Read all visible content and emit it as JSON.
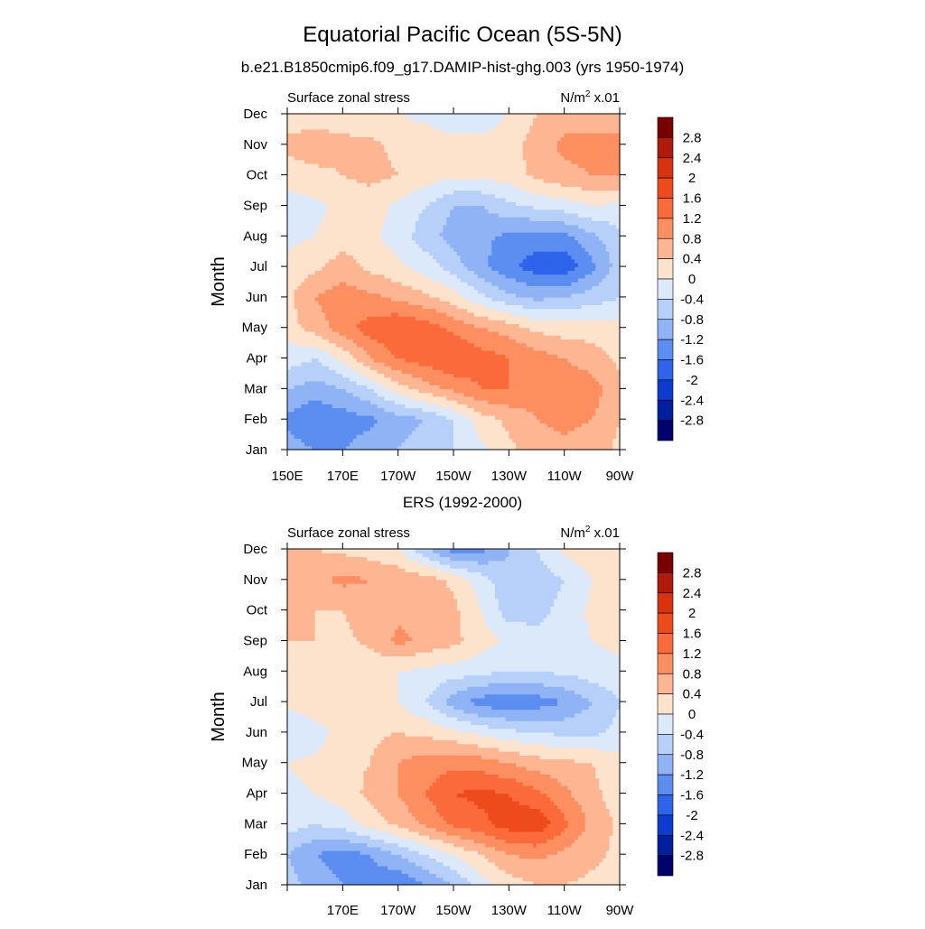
{
  "title": "Equatorial Pacific Ocean (5S-5N)",
  "colorbar_levels": [
    "2.8",
    "2.4",
    "2",
    "1.6",
    "1.2",
    "0.8",
    "0.4",
    "0",
    "-0.4",
    "-0.8",
    "-1.2",
    "-1.6",
    "-2",
    "-2.4",
    "-2.8"
  ],
  "colorbar_colors": [
    "#7a0000",
    "#b01a0a",
    "#d8320f",
    "#ef4a1c",
    "#fb6a3a",
    "#fd8e60",
    "#fdb592",
    "#fde3cc",
    "#dbe9fb",
    "#b7d0f9",
    "#8fb3f5",
    "#5c8df0",
    "#2e63eb",
    "#0c3ccd",
    "#001f9e",
    "#00006e"
  ],
  "panels": [
    {
      "subtitle": "b.e21.B1850cmip6.f09_g17.DAMIP-hist-ghg.003 (yrs 1950-1974)",
      "left_label": "Surface zonal stress",
      "units": "N/m",
      "units_sup": "2",
      "units_suffix": " x.01",
      "ylabel": "Month",
      "month_labels": [
        "Jan",
        "Feb",
        "Mar",
        "Apr",
        "May",
        "Jun",
        "Jul",
        "Aug",
        "Sep",
        "Oct",
        "Nov",
        "Dec"
      ],
      "lon_labels": [
        "150E",
        "170E",
        "170W",
        "150W",
        "130W",
        "110W",
        "90W"
      ]
    },
    {
      "subtitle": "ERS (1992-2000)",
      "left_label": "Surface zonal stress",
      "units": "N/m",
      "units_sup": "2",
      "units_suffix": " x.01",
      "ylabel": "Month",
      "month_labels": [
        "Jan",
        "Feb",
        "Mar",
        "Apr",
        "May",
        "Jun",
        "Jul",
        "Aug",
        "Sep",
        "Oct",
        "Nov",
        "Dec"
      ],
      "lon_labels": [
        "",
        "170E",
        "170W",
        "150W",
        "130W",
        "110W",
        "90W"
      ]
    }
  ],
  "chart_data": [
    {
      "type": "heatmap",
      "title": "Equatorial Pacific Ocean (5S-5N)",
      "subtitle": "b.e21.B1850cmip6.f09_g17.DAMIP-hist-ghg.003 (yrs 1950-1974)",
      "variable": "Surface zonal stress",
      "units": "N/m2 x.01",
      "ylabel": "Month",
      "xlim": [
        "150E",
        "90W"
      ],
      "ylim": [
        "Jan",
        "Dec"
      ],
      "levels": [
        -2.8,
        -2.4,
        -2,
        -1.6,
        -1.2,
        -0.8,
        -0.4,
        0,
        0.4,
        0.8,
        1.2,
        1.6,
        2,
        2.4,
        2.8
      ],
      "x": [
        "150E",
        "160E",
        "170E",
        "180",
        "170W",
        "160W",
        "150W",
        "140W",
        "130W",
        "120W",
        "110W",
        "100W",
        "90W"
      ],
      "y": [
        "Jan",
        "Feb",
        "Mar",
        "Apr",
        "May",
        "Jun",
        "Jul",
        "Aug",
        "Sep",
        "Oct",
        "Nov",
        "Dec"
      ],
      "z": [
        [
          -1.0,
          -1.2,
          -1.2,
          -1.0,
          -0.8,
          -0.6,
          -0.4,
          -0.1,
          0.3,
          0.6,
          0.7,
          0.6,
          0.3
        ],
        [
          -1.3,
          -1.6,
          -1.4,
          -1.3,
          -1.0,
          -0.8,
          -0.4,
          0.2,
          0.5,
          0.8,
          0.9,
          0.8,
          0.4
        ],
        [
          -0.8,
          -1.0,
          -0.8,
          -0.4,
          0.2,
          0.6,
          0.9,
          1.2,
          1.2,
          1.0,
          1.1,
          1.0,
          0.5
        ],
        [
          -0.2,
          -0.4,
          0.1,
          0.8,
          1.2,
          1.4,
          1.6,
          1.4,
          1.2,
          1.0,
          0.8,
          0.6,
          0.3
        ],
        [
          0.2,
          0.6,
          1.0,
          1.4,
          1.6,
          1.4,
          1.1,
          0.8,
          0.6,
          0.3,
          0.2,
          0.2,
          0.1
        ],
        [
          0.3,
          0.8,
          1.0,
          0.9,
          0.7,
          0.5,
          0.2,
          -0.3,
          -0.7,
          -0.9,
          -0.8,
          -0.6,
          -0.4
        ],
        [
          0.1,
          0.3,
          0.6,
          0.3,
          0.1,
          -0.2,
          -0.6,
          -1.1,
          -1.5,
          -1.8,
          -1.9,
          -1.3,
          -0.6
        ],
        [
          -0.1,
          0.0,
          0.2,
          0.1,
          -0.2,
          -0.6,
          -1.0,
          -1.1,
          -1.3,
          -1.4,
          -1.3,
          -0.9,
          -0.5
        ],
        [
          -0.2,
          -0.1,
          0.1,
          0.2,
          -0.1,
          -0.4,
          -0.8,
          -0.8,
          -0.5,
          -0.3,
          -0.2,
          0.0,
          -0.1
        ],
        [
          0.2,
          0.3,
          0.4,
          0.5,
          0.4,
          0.2,
          0.1,
          0.1,
          0.2,
          0.5,
          0.7,
          0.8,
          0.8
        ],
        [
          0.5,
          0.6,
          0.5,
          0.5,
          0.3,
          0.2,
          0.1,
          0.1,
          0.2,
          0.6,
          0.9,
          0.9,
          0.9
        ],
        [
          0.2,
          0.2,
          0.2,
          0.1,
          0.0,
          -0.1,
          -0.2,
          -0.2,
          0.0,
          0.4,
          0.6,
          0.6,
          0.6
        ]
      ]
    },
    {
      "type": "heatmap",
      "title": "ERS (1992-2000)",
      "variable": "Surface zonal stress",
      "units": "N/m2 x.01",
      "ylabel": "Month",
      "xlim": [
        "150E",
        "90W"
      ],
      "ylim": [
        "Jan",
        "Dec"
      ],
      "levels": [
        -2.8,
        -2.4,
        -2,
        -1.6,
        -1.2,
        -0.8,
        -0.4,
        0,
        0.4,
        0.8,
        1.2,
        1.6,
        2,
        2.4,
        2.8
      ],
      "x": [
        "150E",
        "160E",
        "170E",
        "180",
        "170W",
        "160W",
        "150W",
        "140W",
        "130W",
        "120W",
        "110W",
        "100W",
        "90W"
      ],
      "y": [
        "Jan",
        "Feb",
        "Mar",
        "Apr",
        "May",
        "Jun",
        "Jul",
        "Aug",
        "Sep",
        "Oct",
        "Nov",
        "Dec"
      ],
      "z": [
        [
          -0.6,
          -1.0,
          -1.2,
          -1.4,
          -1.6,
          -1.2,
          -0.8,
          -0.2,
          0.2,
          0.4,
          0.4,
          0.3,
          0.2
        ],
        [
          -0.8,
          -1.2,
          -1.4,
          -1.2,
          -0.8,
          -0.4,
          0.0,
          0.4,
          0.8,
          0.9,
          0.7,
          0.5,
          0.3
        ],
        [
          -0.2,
          -0.4,
          -0.2,
          0.2,
          0.5,
          0.9,
          1.3,
          1.5,
          1.8,
          1.9,
          1.3,
          0.7,
          0.3
        ],
        [
          -0.1,
          0.0,
          0.2,
          0.5,
          0.8,
          1.2,
          1.6,
          1.7,
          1.6,
          1.3,
          0.9,
          0.5,
          0.2
        ],
        [
          0.0,
          0.1,
          0.3,
          0.4,
          0.8,
          1.0,
          1.1,
          1.0,
          0.8,
          0.6,
          0.5,
          0.4,
          0.2
        ],
        [
          -0.4,
          -0.2,
          0.2,
          0.3,
          0.4,
          0.3,
          0.1,
          -0.1,
          -0.3,
          -0.4,
          -0.5,
          -0.5,
          -0.3
        ],
        [
          0.1,
          0.3,
          0.3,
          0.2,
          0.0,
          -0.4,
          -1.0,
          -1.4,
          -1.5,
          -1.4,
          -1.2,
          -0.8,
          -0.4
        ],
        [
          0.2,
          0.3,
          0.2,
          0.1,
          0.0,
          -0.1,
          -0.2,
          -0.3,
          -0.4,
          -0.4,
          -0.3,
          -0.2,
          -0.1
        ],
        [
          0.4,
          0.4,
          0.3,
          0.5,
          0.9,
          0.7,
          0.5,
          0.2,
          -0.1,
          -0.3,
          -0.2,
          0.0,
          0.1
        ],
        [
          0.5,
          0.4,
          0.4,
          0.6,
          0.7,
          0.6,
          0.5,
          0.0,
          -0.6,
          -0.5,
          -0.3,
          0.1,
          0.2
        ],
        [
          0.4,
          0.7,
          0.9,
          0.8,
          0.7,
          0.6,
          0.3,
          -0.2,
          -0.7,
          -0.6,
          -0.4,
          0.0,
          0.3
        ],
        [
          0.5,
          0.4,
          0.3,
          0.2,
          0.0,
          -0.7,
          -1.4,
          -1.3,
          -0.8,
          -0.4,
          0.1,
          0.3,
          0.4
        ]
      ]
    }
  ]
}
